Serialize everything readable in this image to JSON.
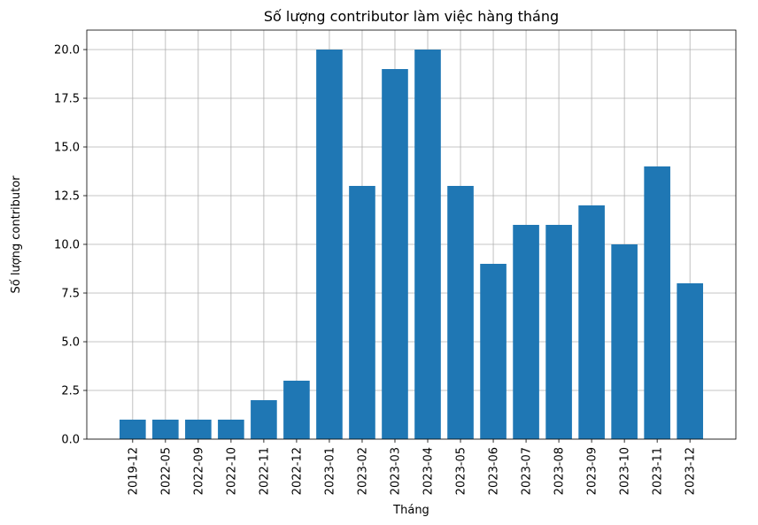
{
  "chart_data": {
    "type": "bar",
    "title": "Số lượng contributor làm việc hàng tháng",
    "xlabel": "Tháng",
    "ylabel": "Số lượng contributor",
    "categories": [
      "2019-12",
      "2022-05",
      "2022-09",
      "2022-10",
      "2022-11",
      "2022-12",
      "2023-01",
      "2023-02",
      "2023-03",
      "2023-04",
      "2023-05",
      "2023-06",
      "2023-07",
      "2023-08",
      "2023-09",
      "2023-10",
      "2023-11",
      "2023-12"
    ],
    "values": [
      1,
      1,
      1,
      1,
      2,
      3,
      20,
      13,
      19,
      20,
      13,
      9,
      11,
      11,
      12,
      10,
      14,
      8
    ],
    "ylim": [
      0,
      21
    ],
    "yticks": [
      "0.0",
      "2.5",
      "5.0",
      "7.5",
      "10.0",
      "12.5",
      "15.0",
      "17.5",
      "20.0"
    ],
    "grid": true,
    "bar_color": "#1f77b4"
  }
}
